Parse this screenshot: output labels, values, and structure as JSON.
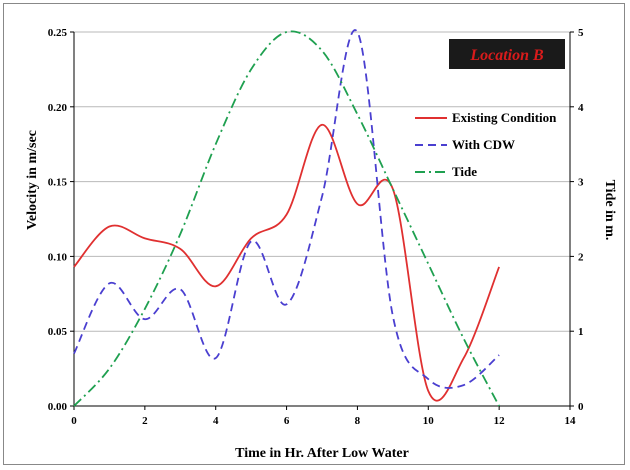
{
  "chart_data": {
    "type": "line",
    "xlabel": "Time in Hr. After Low Water",
    "ylabel": "Velocity in m/sec",
    "y2label": "Tide in m.",
    "annotation": "Location B",
    "xlim": [
      0,
      14
    ],
    "ylim": [
      0,
      0.25
    ],
    "y2lim": [
      0,
      5
    ],
    "x_ticks": [
      "0",
      "2",
      "4",
      "6",
      "8",
      "10",
      "12",
      "14"
    ],
    "y_ticks": [
      "0.00",
      "0.05",
      "0.10",
      "0.15",
      "0.20",
      "0.25"
    ],
    "y2_ticks": [
      "0",
      "1",
      "2",
      "3",
      "4",
      "5"
    ],
    "grid": "horizontal",
    "legend_position": "right",
    "series": [
      {
        "name": "Existing Condition",
        "axis": "left",
        "color": "#e03030",
        "dash": "solid",
        "x": [
          0,
          1,
          2,
          3,
          4,
          5,
          6,
          7,
          8,
          9,
          10,
          11,
          12
        ],
        "y": [
          0.093,
          0.12,
          0.112,
          0.105,
          0.08,
          0.112,
          0.128,
          0.188,
          0.135,
          0.145,
          0.01,
          0.032,
          0.093
        ]
      },
      {
        "name": "With CDW",
        "axis": "left",
        "color": "#4a3fd0",
        "dash": "8,5",
        "x": [
          0,
          1,
          2,
          3,
          4,
          5,
          6,
          7,
          8,
          9,
          10,
          11,
          12
        ],
        "y": [
          0.035,
          0.082,
          0.058,
          0.078,
          0.032,
          0.11,
          0.068,
          0.14,
          0.25,
          0.06,
          0.018,
          0.014,
          0.034
        ]
      },
      {
        "name": "Tide",
        "axis": "right",
        "color": "#1fa050",
        "dash": "10,4,2,4",
        "x": [
          0,
          1,
          2,
          3,
          4,
          5,
          6,
          7,
          8,
          9,
          10,
          11,
          12
        ],
        "y": [
          0.0,
          0.5,
          1.3,
          2.3,
          3.5,
          4.5,
          5.0,
          4.75,
          3.9,
          2.9,
          1.9,
          0.9,
          0.0
        ]
      }
    ]
  }
}
